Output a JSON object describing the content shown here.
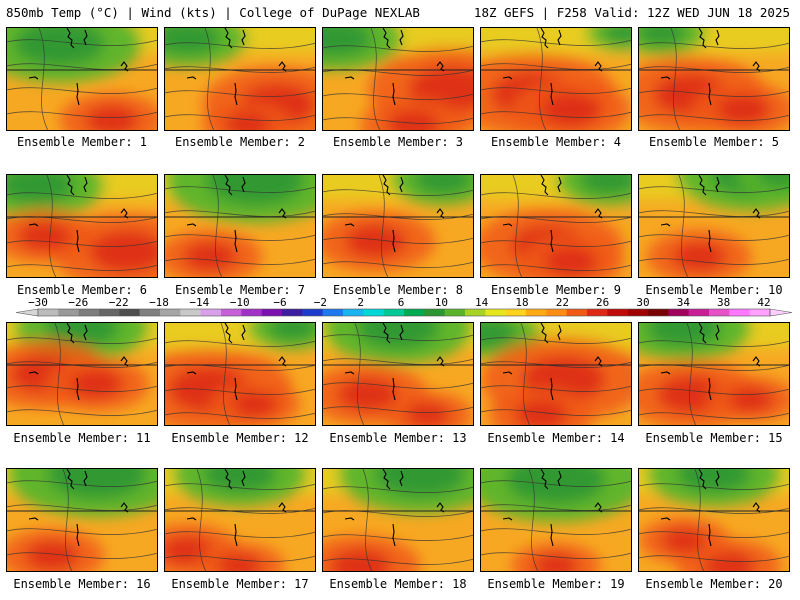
{
  "header": {
    "left": "850mb Temp (°C) | Wind (kts) | College of DuPage NEXLAB",
    "right": "18Z GEFS | F258 Valid: 12Z WED JUN 18 2025"
  },
  "caption_prefix": "Ensemble Member: ",
  "members": [
    {
      "id": 1,
      "caption": "Ensemble Member: 1",
      "warm": [
        [
          0.7,
          0.9,
          0.35
        ]
      ],
      "cool": [
        [
          0.35,
          0.15,
          0.55
        ]
      ]
    },
    {
      "id": 2,
      "caption": "Ensemble Member: 2",
      "warm": [
        [
          0.75,
          0.75,
          0.5
        ],
        [
          0.55,
          0.95,
          0.3
        ]
      ],
      "cool": [
        [
          0.15,
          0.1,
          0.4
        ]
      ]
    },
    {
      "id": 3,
      "caption": "Ensemble Member: 3",
      "warm": [
        [
          0.85,
          0.6,
          0.55
        ],
        [
          0.6,
          0.95,
          0.35
        ]
      ],
      "cool": [
        [
          0.08,
          0.1,
          0.45
        ]
      ]
    },
    {
      "id": 4,
      "caption": "Ensemble Member: 4",
      "warm": [
        [
          0.35,
          0.65,
          0.55
        ],
        [
          0.6,
          0.8,
          0.4
        ]
      ],
      "cool": [
        [
          0.95,
          0.05,
          0.25
        ]
      ]
    },
    {
      "id": 5,
      "caption": "Ensemble Member: 5",
      "warm": [
        [
          0.35,
          0.65,
          0.5
        ],
        [
          0.7,
          0.8,
          0.35
        ]
      ],
      "cool": [
        [
          0.15,
          0.05,
          0.3
        ]
      ]
    },
    {
      "id": 6,
      "caption": "Ensemble Member: 6",
      "warm": [
        [
          0.8,
          0.75,
          0.5
        ],
        [
          0.25,
          0.6,
          0.35
        ]
      ],
      "cool": [
        [
          0.2,
          0.1,
          0.45
        ]
      ]
    },
    {
      "id": 7,
      "caption": "Ensemble Member: 7",
      "warm": [
        [
          0.3,
          0.8,
          0.35
        ]
      ],
      "cool": [
        [
          0.6,
          0.05,
          0.6
        ]
      ]
    },
    {
      "id": 8,
      "caption": "Ensemble Member: 8",
      "warm": [
        [
          0.35,
          0.65,
          0.4
        ]
      ],
      "cool": [
        [
          0.8,
          0.05,
          0.35
        ]
      ]
    },
    {
      "id": 9,
      "caption": "Ensemble Member: 9",
      "warm": [
        [
          0.45,
          0.7,
          0.5
        ],
        [
          0.6,
          0.85,
          0.35
        ]
      ],
      "cool": [
        [
          0.85,
          0.05,
          0.35
        ]
      ]
    },
    {
      "id": 10,
      "caption": "Ensemble Member: 10",
      "warm": [
        [
          0.4,
          0.8,
          0.35
        ]
      ],
      "cool": [
        [
          0.75,
          0.0,
          0.5
        ],
        [
          0.95,
          0.0,
          0.3
        ]
      ]
    },
    {
      "id": 11,
      "caption": "Ensemble Member: 11",
      "warm": [
        [
          0.25,
          0.5,
          0.45
        ],
        [
          0.6,
          0.6,
          0.35
        ]
      ],
      "cool": [
        [
          0.5,
          0.05,
          0.45
        ]
      ]
    },
    {
      "id": 12,
      "caption": "Ensemble Member: 12",
      "warm": [
        [
          0.3,
          0.65,
          0.55
        ],
        [
          0.6,
          0.8,
          0.3
        ]
      ],
      "cool": [
        [
          0.85,
          0.05,
          0.3
        ]
      ]
    },
    {
      "id": 13,
      "caption": "Ensemble Member: 13",
      "warm": [
        [
          0.3,
          0.7,
          0.4
        ],
        [
          0.7,
          0.9,
          0.3
        ]
      ],
      "cool": [
        [
          0.5,
          0.05,
          0.5
        ]
      ]
    },
    {
      "id": 14,
      "caption": "Ensemble Member: 14",
      "warm": [
        [
          0.55,
          0.55,
          0.55
        ],
        [
          0.4,
          0.9,
          0.35
        ]
      ],
      "cool": [
        [
          0.05,
          0.1,
          0.35
        ]
      ]
    },
    {
      "id": 15,
      "caption": "Ensemble Member: 15",
      "warm": [
        [
          0.35,
          0.7,
          0.45
        ],
        [
          0.75,
          0.75,
          0.3
        ]
      ],
      "cool": [
        [
          0.3,
          0.05,
          0.45
        ]
      ]
    },
    {
      "id": 16,
      "caption": "Ensemble Member: 16",
      "warm": [
        [
          0.3,
          0.85,
          0.35
        ]
      ],
      "cool": [
        [
          0.6,
          0.05,
          0.6
        ]
      ]
    },
    {
      "id": 17,
      "caption": "Ensemble Member: 17",
      "warm": [
        [
          0.15,
          0.8,
          0.35
        ],
        [
          0.5,
          0.95,
          0.3
        ]
      ],
      "cool": [
        [
          0.5,
          0.05,
          0.45
        ]
      ]
    },
    {
      "id": 18,
      "caption": "Ensemble Member: 18",
      "warm": [
        [
          0.25,
          0.95,
          0.4
        ]
      ],
      "cool": [
        [
          0.65,
          0.05,
          0.55
        ]
      ]
    },
    {
      "id": 19,
      "caption": "Ensemble Member: 19",
      "warm": [
        [
          0.5,
          0.95,
          0.3
        ]
      ],
      "cool": [
        [
          0.5,
          0.1,
          0.6
        ]
      ]
    },
    {
      "id": 20,
      "caption": "Ensemble Member: 20",
      "warm": [
        [
          0.6,
          0.95,
          0.35
        ],
        [
          0.3,
          0.7,
          0.3
        ]
      ],
      "cool": [
        [
          0.5,
          0.05,
          0.45
        ]
      ]
    }
  ],
  "colorbar": {
    "labels": [
      "-30",
      "-26",
      "-22",
      "-18",
      "-14",
      "-10",
      "-6",
      "-2",
      "2",
      "6",
      "10",
      "14",
      "18",
      "22",
      "26",
      "30",
      "34",
      "38",
      "42"
    ],
    "colors": [
      "#bcbcbc",
      "#9a9a9a",
      "#7d7d7d",
      "#666666",
      "#4e4e4e",
      "#808080",
      "#a6a6a6",
      "#c8c8c8",
      "#d7a0e8",
      "#c65fd9",
      "#a030c8",
      "#7a10b0",
      "#3c1ea0",
      "#1e3ccc",
      "#1e78ee",
      "#18b4f0",
      "#00d8d8",
      "#00c896",
      "#00aa50",
      "#2c9632",
      "#5ab42a",
      "#a8d226",
      "#e6e61e",
      "#ffd21e",
      "#ffaa14",
      "#ff8c14",
      "#f05a14",
      "#dc2814",
      "#c00a0a",
      "#a00000",
      "#780000",
      "#a0005a",
      "#c81e96",
      "#e650c8",
      "#ff78ff",
      "#ffa0ff"
    ]
  }
}
